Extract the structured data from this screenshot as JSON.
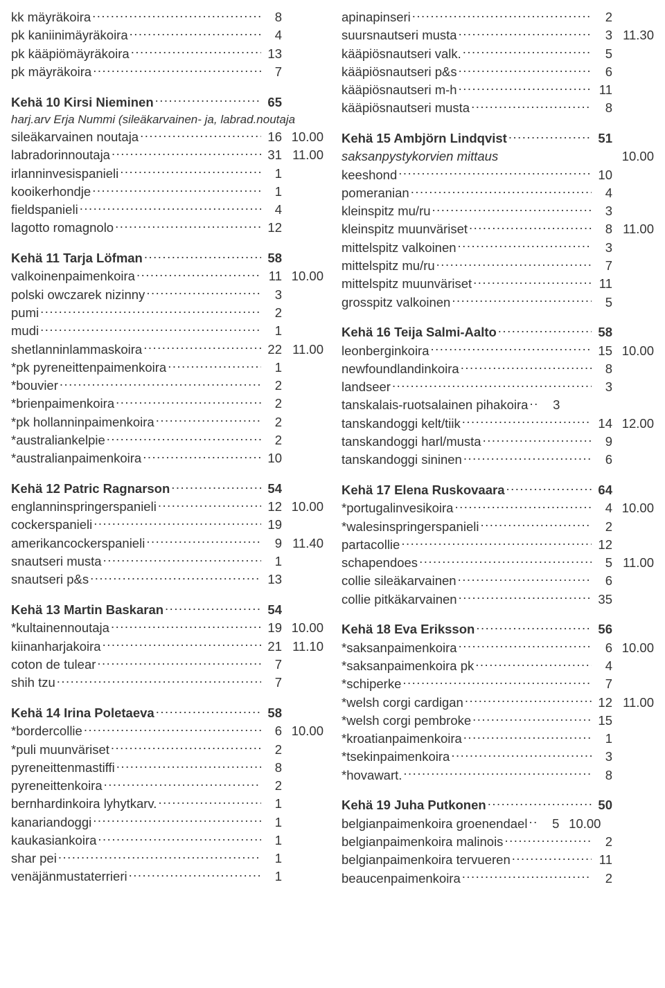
{
  "left": [
    {
      "type": "row",
      "label": "kk mäyräkoira",
      "num": "8",
      "time": ""
    },
    {
      "type": "row",
      "label": "pk kaniinimäyräkoira",
      "num": "4",
      "time": ""
    },
    {
      "type": "row",
      "label": "pk kääpiömäyräkoira",
      "num": "13",
      "time": ""
    },
    {
      "type": "row",
      "label": "pk mäyräkoira",
      "num": "7",
      "time": ""
    },
    {
      "type": "spacer"
    },
    {
      "type": "heading",
      "label": "Kehä 10  Kirsi Nieminen",
      "num": "65",
      "time": ""
    },
    {
      "type": "raw",
      "italic": true,
      "text": "harj.arv Erja Nummi (sileäkarvainen- ja, labrad.noutaja"
    },
    {
      "type": "row",
      "label": "sileäkarvainen noutaja",
      "num": "16",
      "time": "10.00"
    },
    {
      "type": "row",
      "label": "labradorinnoutaja",
      "num": "31",
      "time": "11.00"
    },
    {
      "type": "row",
      "label": "irlanninvesispanieli",
      "num": "1",
      "time": ""
    },
    {
      "type": "row",
      "label": "kooikerhondje",
      "num": "1",
      "time": ""
    },
    {
      "type": "row",
      "label": "fieldspanieli",
      "num": "4",
      "time": ""
    },
    {
      "type": "row",
      "label": "lagotto romagnolo",
      "num": "12",
      "time": ""
    },
    {
      "type": "spacer"
    },
    {
      "type": "heading",
      "label": "Kehä 11  Tarja Löfman",
      "num": "58",
      "time": ""
    },
    {
      "type": "row",
      "label": "valkoinenpaimenkoira",
      "num": "11",
      "time": "10.00"
    },
    {
      "type": "row",
      "label": "polski owczarek nizinny",
      "num": "3",
      "time": ""
    },
    {
      "type": "row",
      "label": "pumi",
      "num": "2",
      "time": ""
    },
    {
      "type": "row",
      "label": "mudi",
      "num": "1",
      "time": ""
    },
    {
      "type": "row",
      "label": "shetlanninlammaskoira",
      "num": "22",
      "time": "11.00"
    },
    {
      "type": "row",
      "label": "*pk pyreneittenpaimenkoira",
      "num": "1",
      "time": ""
    },
    {
      "type": "row",
      "label": "*bouvier",
      "num": "2",
      "time": ""
    },
    {
      "type": "row",
      "label": "*brienpaimenkoira",
      "num": "2",
      "time": ""
    },
    {
      "type": "row",
      "label": "*pk hollanninpaimenkoira",
      "num": "2",
      "time": ""
    },
    {
      "type": "row",
      "label": "*australiankelpie",
      "num": "2",
      "time": ""
    },
    {
      "type": "row",
      "label": "*australianpaimenkoira",
      "num": "10",
      "time": ""
    },
    {
      "type": "spacer"
    },
    {
      "type": "heading",
      "label": "Kehä 12  Patric Ragnarson",
      "num": "54",
      "time": ""
    },
    {
      "type": "row",
      "label": "englanninspringerspanieli",
      "num": "12",
      "time": "10.00"
    },
    {
      "type": "row",
      "label": "cockerspanieli",
      "num": "19",
      "time": ""
    },
    {
      "type": "row",
      "label": "amerikancockerspanieli",
      "num": "9",
      "time": "11.40"
    },
    {
      "type": "row",
      "label": "snautseri musta",
      "num": "1",
      "time": ""
    },
    {
      "type": "row",
      "label": "snautseri p&s",
      "num": "13",
      "time": ""
    },
    {
      "type": "spacer"
    },
    {
      "type": "heading",
      "label": "Kehä 13  Martin Baskaran",
      "num": "54",
      "time": ""
    },
    {
      "type": "row",
      "label": "*kultainennoutaja",
      "num": "19",
      "time": "10.00"
    },
    {
      "type": "row",
      "label": "kiinanharjakoira",
      "num": "21",
      "time": "11.10"
    },
    {
      "type": "row",
      "label": "coton de tulear",
      "num": "7",
      "time": ""
    },
    {
      "type": "row",
      "label": "shih tzu",
      "num": "7",
      "time": ""
    },
    {
      "type": "spacer"
    },
    {
      "type": "heading",
      "label": "Kehä 14  Irina Poletaeva",
      "num": "58",
      "time": ""
    },
    {
      "type": "row",
      "label": "*bordercollie",
      "num": "6",
      "time": "10.00"
    },
    {
      "type": "row",
      "label": "*puli muunväriset",
      "num": "2",
      "time": ""
    },
    {
      "type": "row",
      "label": "pyreneittenmastiffi",
      "num": "8",
      "time": ""
    },
    {
      "type": "row",
      "label": "pyreneittenkoira",
      "num": "2",
      "time": ""
    },
    {
      "type": "row",
      "label": "bernhardinkoira lyhytkarv.",
      "num": "1",
      "time": ""
    },
    {
      "type": "row",
      "label": "kanariandoggi",
      "num": "1",
      "time": ""
    },
    {
      "type": "row",
      "label": "kaukasiankoira",
      "num": "1",
      "time": ""
    },
    {
      "type": "row",
      "label": "shar pei",
      "num": "1",
      "time": ""
    },
    {
      "type": "row",
      "label": "venäjänmustaterrieri",
      "num": "1",
      "time": ""
    }
  ],
  "right": [
    {
      "type": "row",
      "label": "apinapinseri",
      "num": "2",
      "time": ""
    },
    {
      "type": "row",
      "label": "suursnautseri musta",
      "num": "3",
      "time": "11.30"
    },
    {
      "type": "row",
      "label": "kääpiösnautseri valk.",
      "num": "5",
      "time": ""
    },
    {
      "type": "row",
      "label": "kääpiösnautseri p&s",
      "num": "6",
      "time": ""
    },
    {
      "type": "row",
      "label": "kääpiösnautseri m-h",
      "num": "11",
      "time": ""
    },
    {
      "type": "row",
      "label": "kääpiösnautseri musta",
      "num": "8",
      "time": ""
    },
    {
      "type": "spacer"
    },
    {
      "type": "heading",
      "label": "Kehä 15  Ambjörn Lindqvist",
      "num": "51",
      "time": ""
    },
    {
      "type": "row",
      "italic": true,
      "label": "saksanpystykorvien mittaus",
      "num": "",
      "time": "10.00",
      "nodots": true
    },
    {
      "type": "row",
      "label": "keeshond",
      "num": "10",
      "time": ""
    },
    {
      "type": "row",
      "label": "pomeranian",
      "num": "4",
      "time": ""
    },
    {
      "type": "row",
      "label": "kleinspitz mu/ru",
      "num": "3",
      "time": ""
    },
    {
      "type": "row",
      "label": "kleinspitz muunväriset",
      "num": "8",
      "time": "11.00"
    },
    {
      "type": "row",
      "label": "mittelspitz valkoinen",
      "num": "3",
      "time": ""
    },
    {
      "type": "row",
      "label": "mittelspitz mu/ru",
      "num": "7",
      "time": ""
    },
    {
      "type": "row",
      "label": "mittelspitz muunväriset",
      "num": "11",
      "time": ""
    },
    {
      "type": "row",
      "label": "grosspitz valkoinen",
      "num": "5",
      "time": ""
    },
    {
      "type": "spacer"
    },
    {
      "type": "heading",
      "label": "Kehä 16  Teija Salmi-Aalto",
      "num": "58",
      "time": ""
    },
    {
      "type": "row",
      "label": "leonberginkoira",
      "num": "15",
      "time": "10.00"
    },
    {
      "type": "row",
      "label": "newfoundlandinkoira",
      "num": "8",
      "time": ""
    },
    {
      "type": "row",
      "label": "landseer",
      "num": "3",
      "time": ""
    },
    {
      "type": "row",
      "label": "tanskalais-ruotsalainen pihakoira",
      "num": "3",
      "time": "",
      "short": true
    },
    {
      "type": "row",
      "label": "tanskandoggi kelt/tiik",
      "num": "14",
      "time": "12.00"
    },
    {
      "type": "row",
      "label": "tanskandoggi harl/musta",
      "num": "9",
      "time": ""
    },
    {
      "type": "row",
      "label": "tanskandoggi sininen",
      "num": "6",
      "time": ""
    },
    {
      "type": "spacer"
    },
    {
      "type": "heading",
      "label": "Kehä 17  Elena Ruskovaara",
      "num": "64",
      "time": ""
    },
    {
      "type": "row",
      "label": "*portugalinvesikoira",
      "num": "4",
      "time": "10.00"
    },
    {
      "type": "row",
      "label": "*walesinspringerspanieli",
      "num": "2",
      "time": ""
    },
    {
      "type": "row",
      "label": "partacollie",
      "num": "12",
      "time": ""
    },
    {
      "type": "row",
      "label": "schapendoes",
      "num": "5",
      "time": "11.00"
    },
    {
      "type": "row",
      "label": "collie sileäkarvainen",
      "num": "6",
      "time": ""
    },
    {
      "type": "row",
      "label": "collie pitkäkarvainen",
      "num": "35",
      "time": ""
    },
    {
      "type": "spacer"
    },
    {
      "type": "heading",
      "label": "Kehä 18  Eva Eriksson",
      "num": "56",
      "time": ""
    },
    {
      "type": "row",
      "label": "*saksanpaimenkoira",
      "num": "6",
      "time": "10.00"
    },
    {
      "type": "row",
      "label": "*saksanpaimenkoira pk",
      "num": "4",
      "time": ""
    },
    {
      "type": "row",
      "label": "*schiperke",
      "num": "7",
      "time": ""
    },
    {
      "type": "row",
      "label": "*welsh corgi cardigan",
      "num": "12",
      "time": "11.00"
    },
    {
      "type": "row",
      "label": "*welsh corgi pembroke",
      "num": "15",
      "time": ""
    },
    {
      "type": "row",
      "label": "*kroatianpaimenkoira",
      "num": "1",
      "time": ""
    },
    {
      "type": "row",
      "label": "*tsekinpaimenkoira",
      "num": "3",
      "time": ""
    },
    {
      "type": "row",
      "label": "*hovawart.",
      "num": "8",
      "time": ""
    },
    {
      "type": "spacer"
    },
    {
      "type": "heading",
      "label": "Kehä 19  Juha Putkonen",
      "num": "50",
      "time": ""
    },
    {
      "type": "row",
      "label": "belgianpaimenkoira groenendael",
      "num": "5",
      "time": "10.00",
      "short": true
    },
    {
      "type": "row",
      "label": "belgianpaimenkoira malinois",
      "num": "2",
      "time": ""
    },
    {
      "type": "row",
      "label": "belgianpaimenkoira tervueren",
      "num": "11",
      "time": ""
    },
    {
      "type": "row",
      "label": "beaucenpaimenkoira",
      "num": "2",
      "time": ""
    }
  ]
}
